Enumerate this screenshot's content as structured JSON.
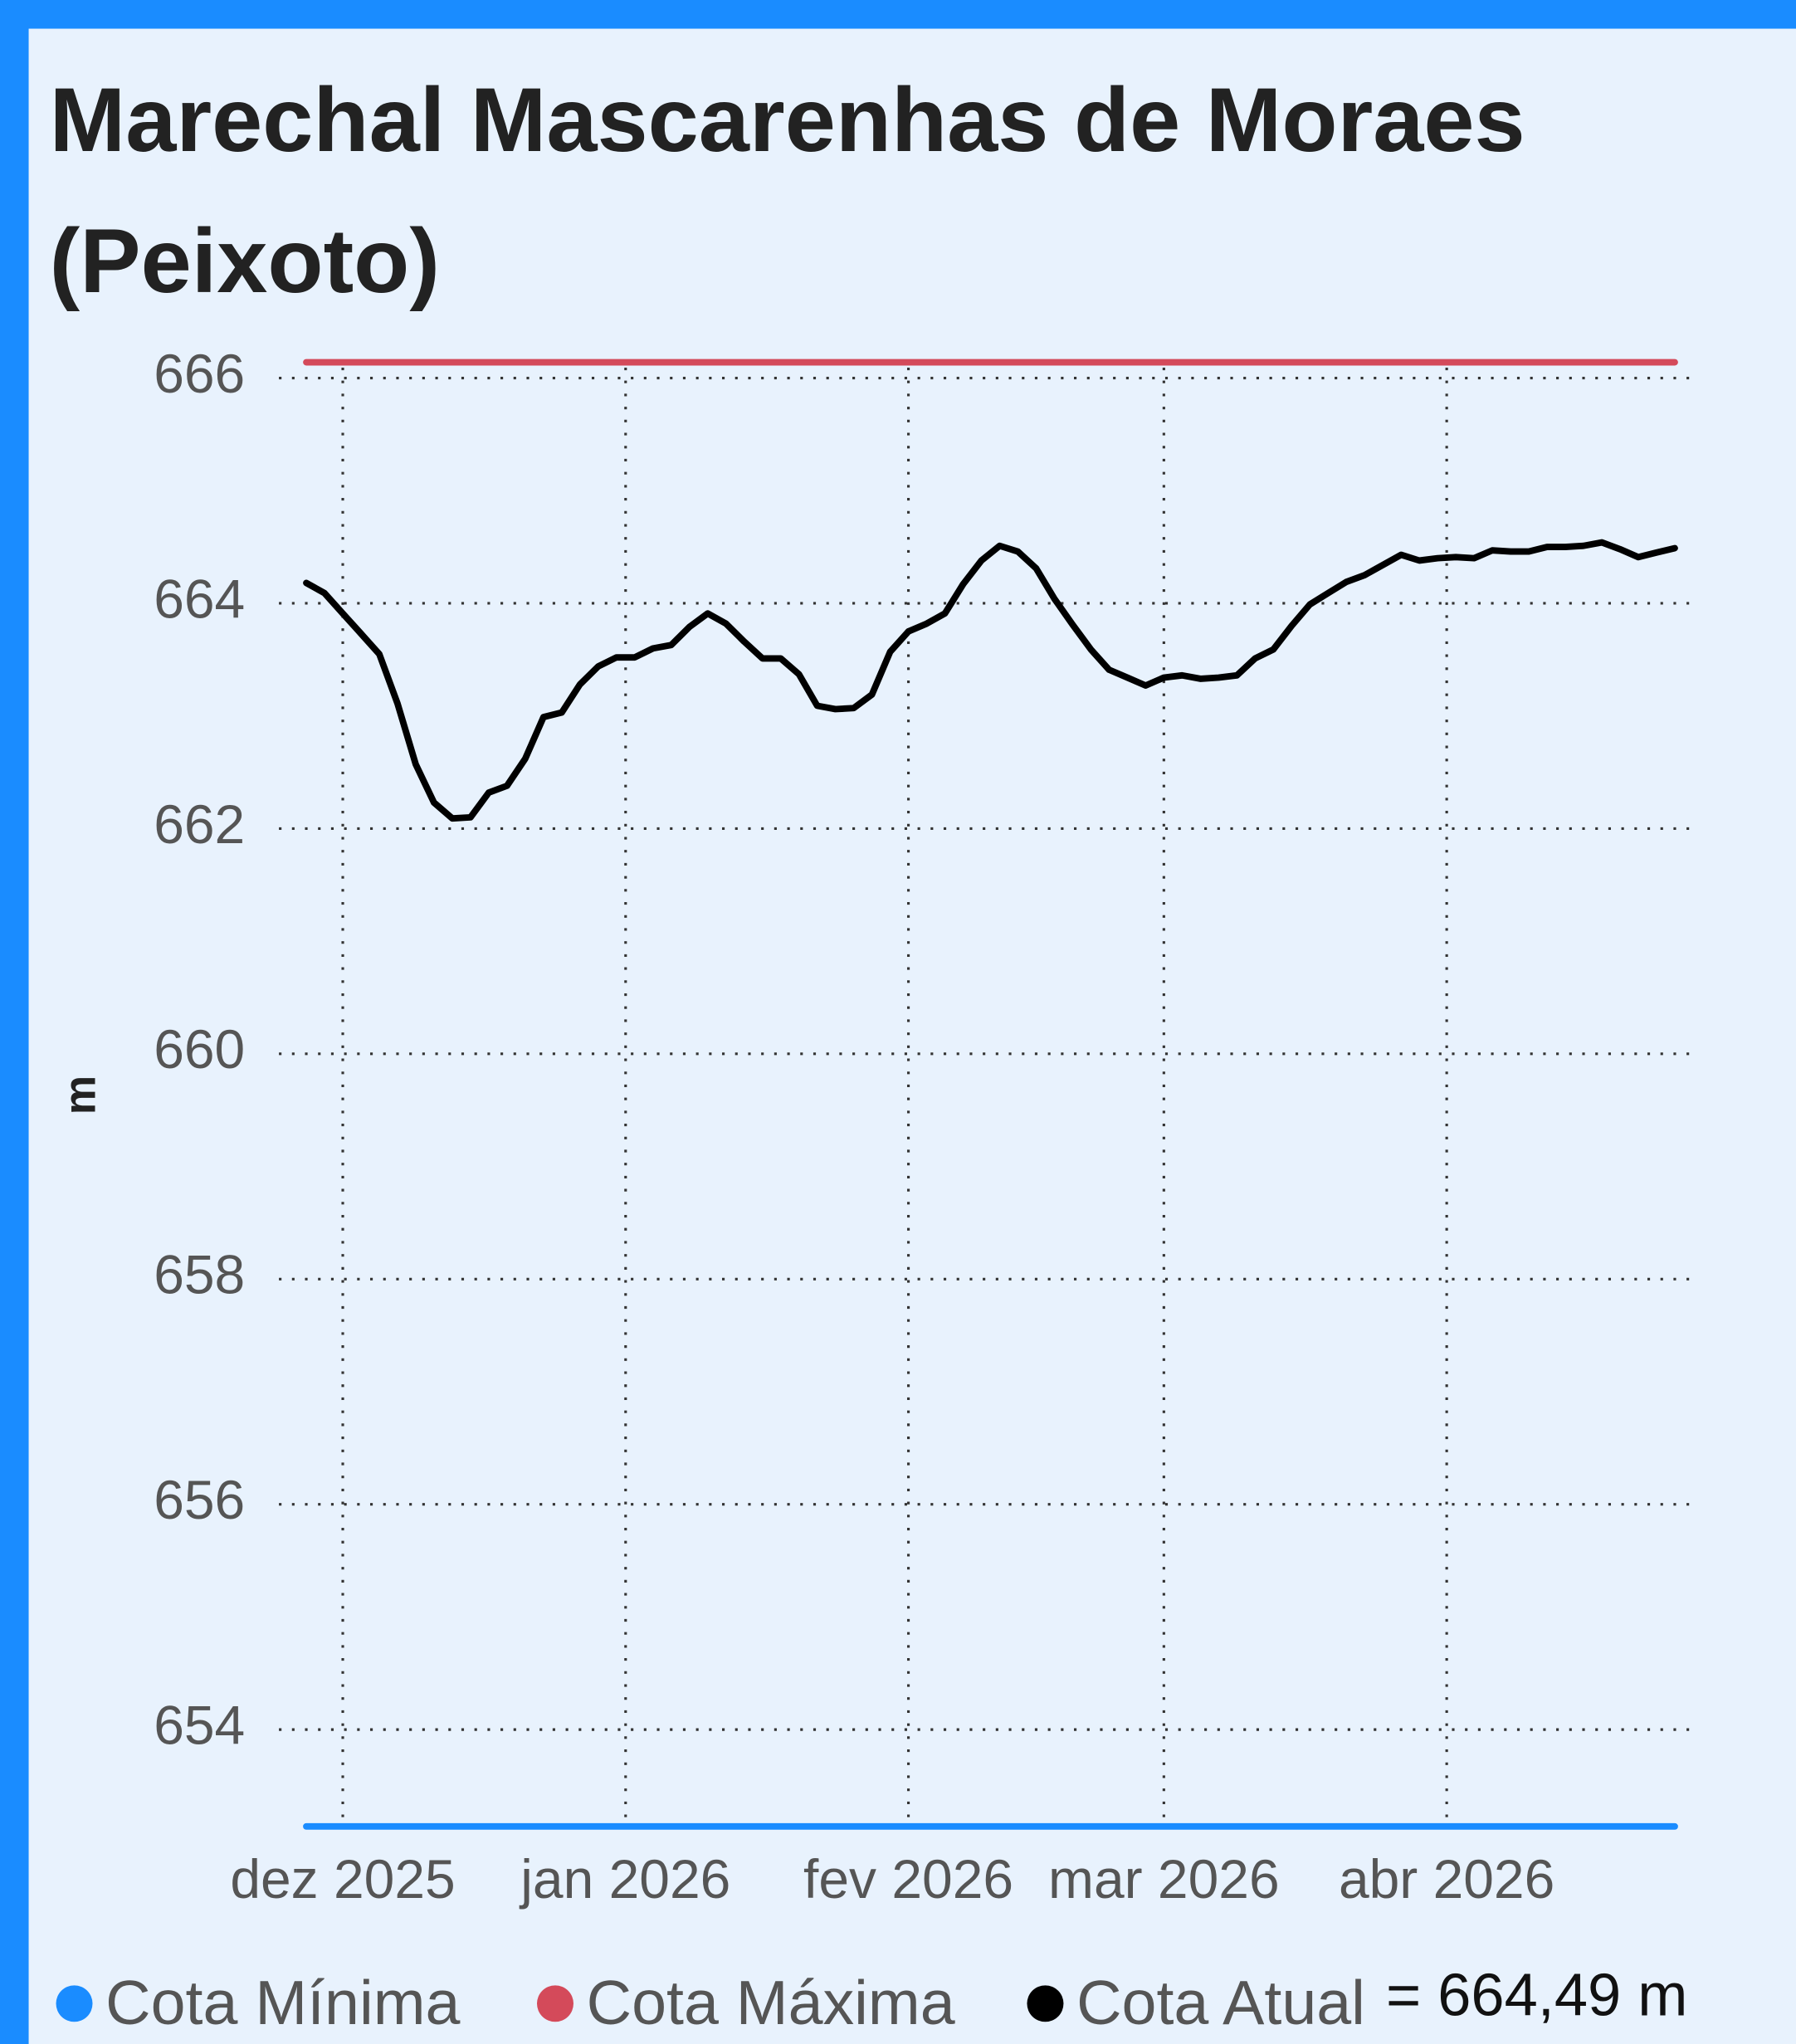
{
  "chart_data": {
    "type": "line",
    "title": "Marechal Mascarenhas de Moraes (Peixoto)",
    "y_label": "m",
    "xlim": [
      -1.5,
      76
    ],
    "xticks": [
      {
        "value": 2,
        "label": "dez 2025"
      },
      {
        "value": 17.5,
        "label": "jan 2026"
      },
      {
        "value": 33,
        "label": "fev 2026"
      },
      {
        "value": 47,
        "label": "mar 2026"
      },
      {
        "value": 62.5,
        "label": "abr 2026"
      }
    ],
    "ylim": [
      653,
      666.25
    ],
    "yticks": [
      654,
      656,
      658,
      660,
      662,
      664,
      666
    ],
    "grid": true,
    "series": [
      {
        "name": "Cota Mínima",
        "color": "#1a8cff",
        "x": [
          0,
          75
        ],
        "values": [
          653.14,
          653.14
        ]
      },
      {
        "name": "Cota Máxima",
        "color": "#d44a5a",
        "x": [
          0,
          75
        ],
        "values": [
          666.14,
          666.14
        ]
      },
      {
        "name": "Cota Atual",
        "color": "#000000",
        "x": [
          0,
          1,
          2,
          3,
          4,
          5,
          6,
          7,
          8,
          9,
          10,
          11,
          12,
          13,
          14,
          15,
          16,
          17,
          18,
          19,
          20,
          21,
          22,
          23,
          24,
          25,
          26,
          27,
          28,
          29,
          30,
          31,
          32,
          33,
          34,
          35,
          36,
          37,
          38,
          39,
          40,
          41,
          42,
          43,
          44,
          45,
          46,
          47,
          48,
          49,
          50,
          51,
          52,
          53,
          54,
          55,
          56,
          57,
          58,
          59,
          60,
          61,
          62,
          63,
          64,
          65,
          66,
          67,
          68,
          69,
          70,
          71,
          72,
          73,
          74,
          75
        ],
        "values": [
          664.18,
          664.09,
          663.91,
          663.73,
          663.55,
          663.11,
          662.57,
          662.23,
          662.09,
          662.1,
          662.32,
          662.38,
          662.62,
          662.99,
          663.03,
          663.28,
          663.44,
          663.52,
          663.52,
          663.6,
          663.63,
          663.79,
          663.91,
          663.82,
          663.66,
          663.51,
          663.51,
          663.37,
          663.09,
          663.06,
          663.07,
          663.19,
          663.57,
          663.75,
          663.82,
          663.91,
          664.17,
          664.38,
          664.51,
          664.46,
          664.31,
          664.04,
          663.81,
          663.59,
          663.41,
          663.34,
          663.27,
          663.34,
          663.36,
          663.33,
          663.34,
          663.36,
          663.51,
          663.59,
          663.8,
          663.99,
          664.09,
          664.19,
          664.25,
          664.34,
          664.43,
          664.38,
          664.4,
          664.41,
          664.4,
          664.47,
          664.46,
          664.46,
          664.5,
          664.5,
          664.51,
          664.54,
          664.48,
          664.41,
          664.45,
          664.49
        ],
        "current_label": "= 664,49 m"
      }
    ]
  }
}
